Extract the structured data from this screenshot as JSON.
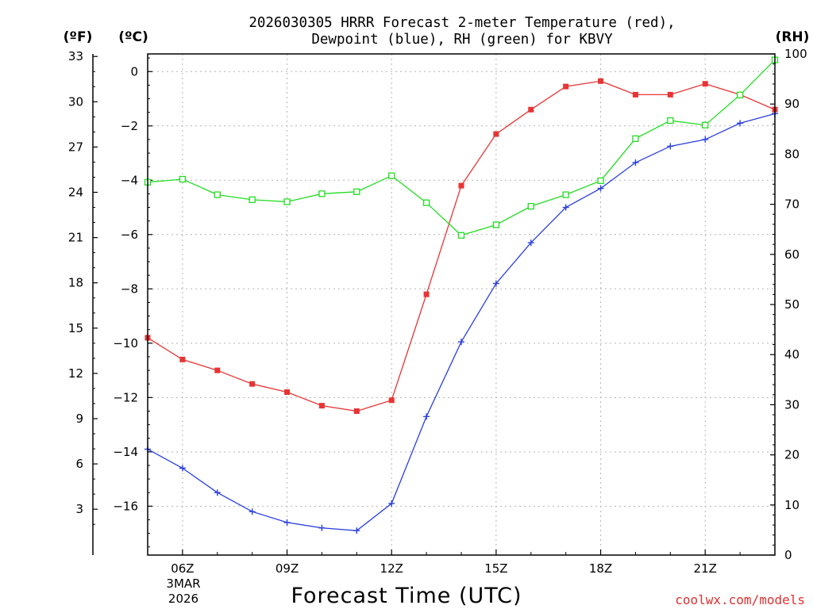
{
  "chart_data": {
    "type": "line",
    "title_line1": "2026030305 HRRR Forecast 2-meter Temperature (red),",
    "title_line2": "Dewpoint (blue), RH (green) for KBVY",
    "xlabel": "Forecast Time (UTC)",
    "credit": "coolwx.com/models",
    "left_outer_unit": "(ºF)",
    "left_inner_unit": "(ºC)",
    "right_unit": "(RH)",
    "date_line1": "3MAR",
    "date_line2": "2026",
    "x_hours": [
      5,
      6,
      7,
      8,
      9,
      10,
      11,
      12,
      13,
      14,
      15,
      16,
      17,
      18,
      19,
      20,
      21,
      22,
      23
    ],
    "xlim": [
      5,
      23
    ],
    "x_ticks": [
      {
        "hour": 6,
        "label": "06Z"
      },
      {
        "hour": 9,
        "label": "09Z"
      },
      {
        "hour": 12,
        "label": "12Z"
      },
      {
        "hour": 15,
        "label": "15Z"
      },
      {
        "hour": 18,
        "label": "18Z"
      },
      {
        "hour": 21,
        "label": "21Z"
      }
    ],
    "celsius_axis": {
      "ylim": [
        -17.8,
        0.65
      ],
      "ticks": [
        0,
        -2,
        -4,
        -6,
        -8,
        -10,
        -12,
        -14,
        -16
      ],
      "labels": [
        "0",
        "−2",
        "−4",
        "−6",
        "−8",
        "−10",
        "−12",
        "−14",
        "−16"
      ]
    },
    "fahrenheit_ticks": [
      {
        "value": 33,
        "label": "33"
      },
      {
        "value": 30,
        "label": "30"
      },
      {
        "value": 27,
        "label": "27"
      },
      {
        "value": 24,
        "label": "24"
      },
      {
        "value": 21,
        "label": "21"
      },
      {
        "value": 18,
        "label": "18"
      },
      {
        "value": 15,
        "label": "15"
      },
      {
        "value": 12,
        "label": "12"
      },
      {
        "value": 9,
        "label": "9"
      },
      {
        "value": 6,
        "label": "6"
      },
      {
        "value": 3,
        "label": "3"
      }
    ],
    "rh_axis": {
      "ylim": [
        0,
        100
      ],
      "ticks": [
        0,
        10,
        20,
        30,
        40,
        50,
        60,
        70,
        80,
        90,
        100
      ],
      "labels": [
        "0",
        "10",
        "20",
        "30",
        "40",
        "50",
        "60",
        "70",
        "80",
        "90",
        "100"
      ]
    },
    "series": [
      {
        "name": "Temperature",
        "axis": "celsius",
        "color": "#e83434",
        "marker": "filled-square",
        "values": [
          -9.8,
          -10.6,
          -11.0,
          -11.5,
          -11.8,
          -12.3,
          -12.5,
          -12.1,
          -8.2,
          -4.2,
          -2.3,
          -1.4,
          -0.55,
          -0.35,
          -0.85,
          -0.85,
          -0.45,
          -0.85,
          -1.4
        ]
      },
      {
        "name": "Dewpoint",
        "axis": "celsius",
        "color": "#2a3fe0",
        "marker": "plus",
        "values": [
          -13.9,
          -14.6,
          -15.5,
          -16.2,
          -16.6,
          -16.8,
          -16.9,
          -15.9,
          -12.7,
          -9.95,
          -7.8,
          -6.3,
          -5.0,
          -4.3,
          -3.35,
          -2.75,
          -2.5,
          -1.9,
          -1.55
        ]
      },
      {
        "name": "RH",
        "axis": "rh",
        "color": "#22dd22",
        "marker": "open-square",
        "values": [
          74.4,
          75.0,
          71.9,
          70.9,
          70.5,
          72.1,
          72.5,
          75.7,
          70.3,
          63.8,
          65.9,
          69.6,
          71.9,
          74.7,
          83.1,
          86.7,
          85.8,
          91.8,
          98.8
        ]
      }
    ]
  }
}
